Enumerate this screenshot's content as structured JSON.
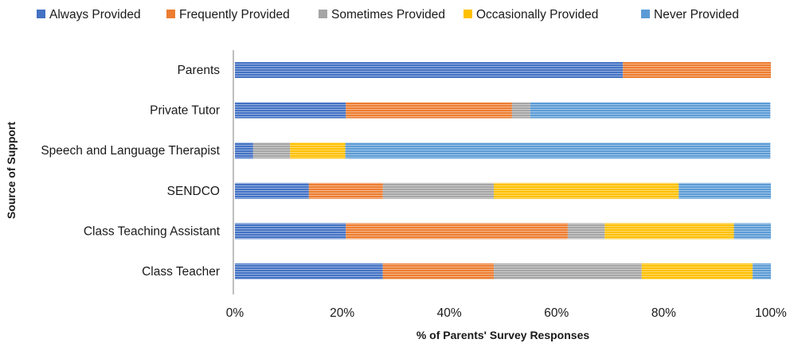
{
  "chart_data": {
    "type": "bar",
    "orientation": "horizontal",
    "stacked": true,
    "percent_stacked": true,
    "title": "",
    "xlabel": "% of Parents' Survey Responses",
    "ylabel": "Source of Support",
    "xlim": [
      0,
      100
    ],
    "x_ticks": [
      "0%",
      "20%",
      "40%",
      "60%",
      "80%",
      "100%"
    ],
    "grid": false,
    "legend_position": "top",
    "categories": [
      "Parents",
      "Private Tutor",
      "Speech and Language Therapist",
      "SENDCO",
      "Class Teaching Assistant",
      "Class Teacher"
    ],
    "series": [
      {
        "name": "Always Provided",
        "color": "#4472C4",
        "values": [
          72.4,
          20.7,
          3.4,
          13.8,
          20.7,
          27.6
        ]
      },
      {
        "name": "Frequently Provided",
        "color": "#ED7D31",
        "values": [
          27.6,
          31.0,
          0,
          13.8,
          41.4,
          20.7
        ]
      },
      {
        "name": "Sometimes Provided",
        "color": "#A5A5A5",
        "values": [
          0,
          3.4,
          6.9,
          20.7,
          6.9,
          27.6
        ]
      },
      {
        "name": "Occasionally Provided",
        "color": "#FFC000",
        "values": [
          0,
          0,
          10.3,
          34.5,
          24.1,
          20.7
        ]
      },
      {
        "name": "Never Provided",
        "color": "#5B9BD5",
        "values": [
          0,
          44.8,
          79.3,
          17.2,
          6.9,
          3.4
        ]
      }
    ]
  }
}
